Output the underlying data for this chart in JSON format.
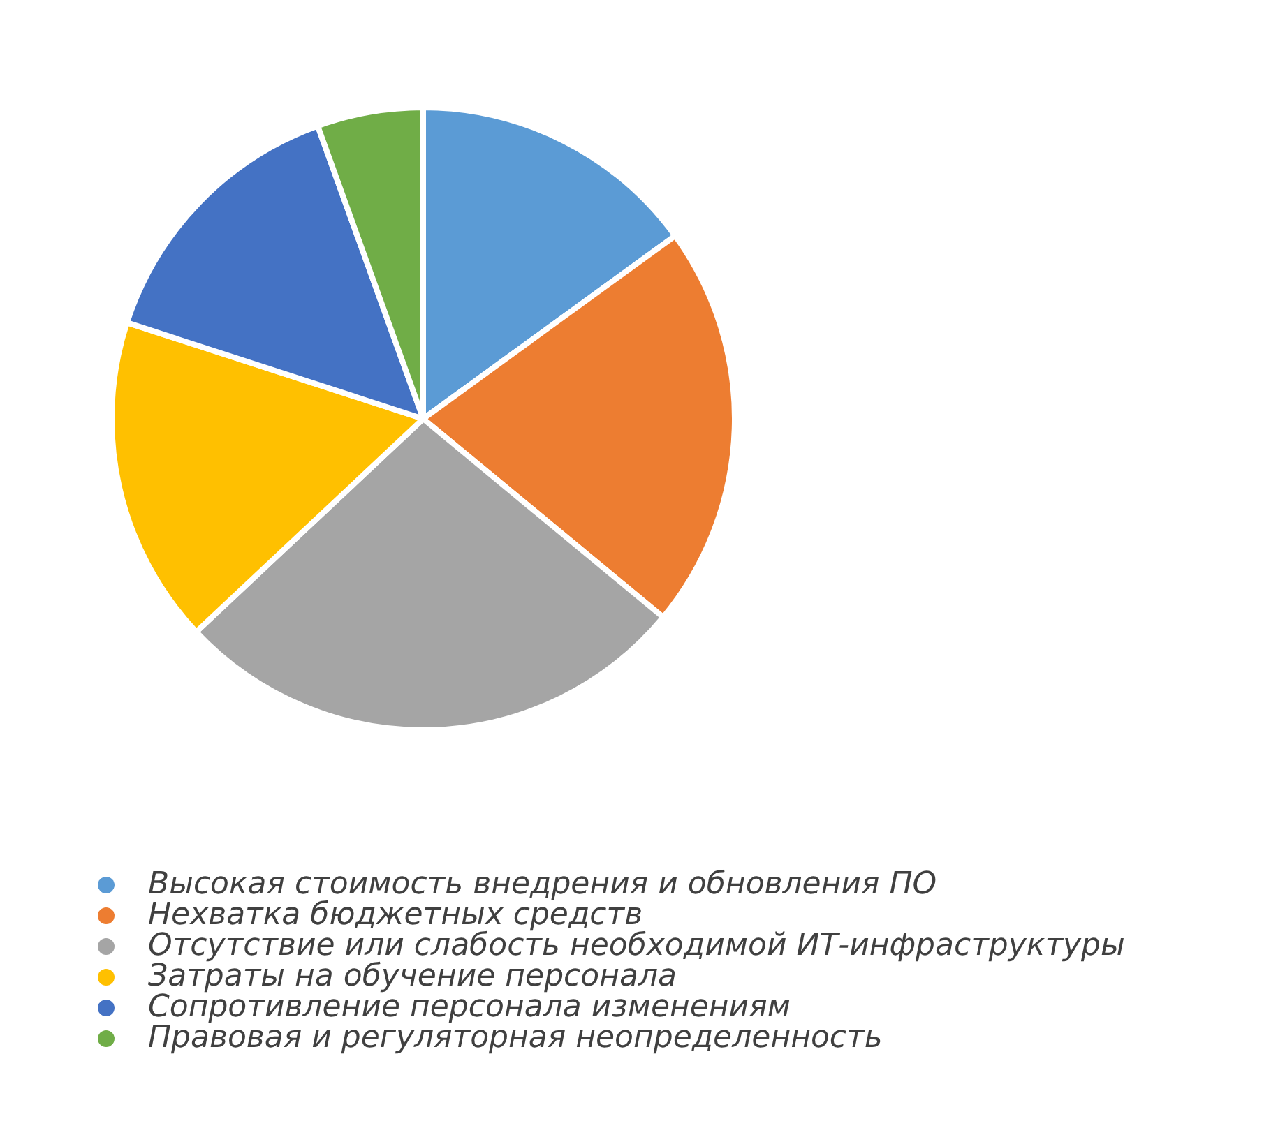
{
  "chart_data": {
    "type": "pie",
    "categories": [
      "Высокая стоимость внедрения и обновления ПО",
      "Нехватка бюджетных средств",
      "Отсутствие или слабость необходимой ИТ-инфраструктуры",
      "Затраты на обучение персонала",
      "Сопротивление персонала изменениям",
      "Правовая и регуляторная неопределенность"
    ],
    "values": [
      15,
      21,
      27,
      17,
      14.5,
      5.5
    ],
    "colors": [
      "#5b9bd5",
      "#ed7d31",
      "#a5a5a5",
      "#ffc000",
      "#4472c4",
      "#70ad47"
    ],
    "legend": "bottom"
  }
}
